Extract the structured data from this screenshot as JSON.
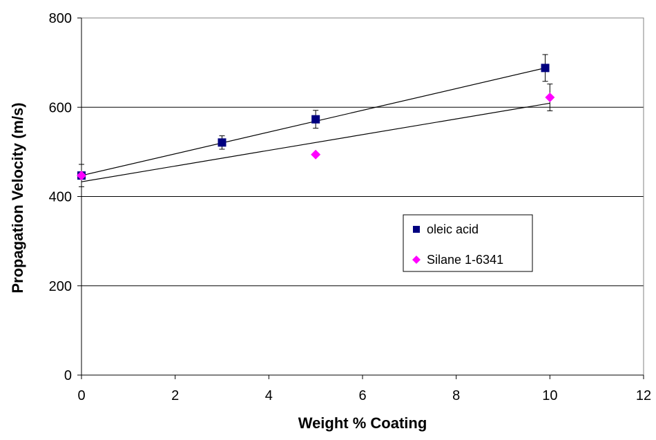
{
  "chart_data": {
    "type": "scatter",
    "title": "",
    "xlabel": "Weight % Coating",
    "ylabel": "Propagation Velocity (m/s)",
    "xlim": [
      0,
      12
    ],
    "ylim": [
      0,
      800
    ],
    "xticks": [
      "0",
      "2",
      "4",
      "6",
      "8",
      "10",
      "12"
    ],
    "yticks": [
      "0",
      "200",
      "400",
      "600",
      "800"
    ],
    "x_tick_values": [
      0,
      2,
      4,
      6,
      8,
      10,
      12
    ],
    "y_tick_values": [
      0,
      200,
      400,
      600,
      800
    ],
    "grid": {
      "y_major": true,
      "x_major": false
    },
    "legend": {
      "position": "center-right"
    },
    "series": [
      {
        "name": "oleic acid",
        "marker": "square",
        "color": "#000080",
        "points": [
          {
            "x": 0,
            "y": 447,
            "err": 25
          },
          {
            "x": 3,
            "y": 521,
            "err": 15
          },
          {
            "x": 5,
            "y": 573,
            "err": 20
          },
          {
            "x": 9.9,
            "y": 688,
            "err": 30
          }
        ],
        "trendline": {
          "x": [
            0,
            9.9
          ],
          "y": [
            447,
            688
          ]
        }
      },
      {
        "name": "Silane 1-6341",
        "marker": "diamond",
        "color": "#FF00FF",
        "points": [
          {
            "x": 0,
            "y": 447,
            "err": 0
          },
          {
            "x": 5,
            "y": 494,
            "err": 0
          },
          {
            "x": 10,
            "y": 622,
            "err": 30
          }
        ],
        "trendline": {
          "x": [
            0,
            10
          ],
          "y": [
            433,
            609
          ]
        }
      }
    ]
  }
}
